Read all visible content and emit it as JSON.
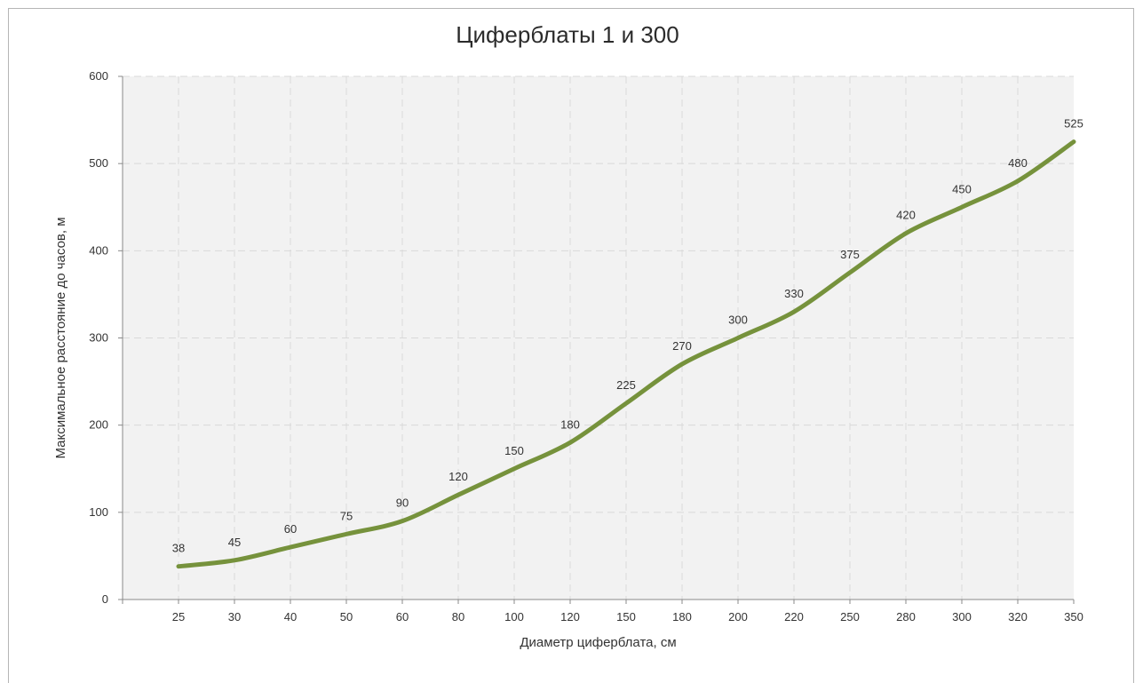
{
  "chart_data": {
    "type": "line",
    "title": "Циферблаты 1 и 300",
    "xlabel": "Диаметр циферблата, см",
    "ylabel": "Максимальное расстояние до часов, м",
    "categories": [
      "25",
      "30",
      "40",
      "50",
      "60",
      "80",
      "100",
      "120",
      "150",
      "180",
      "200",
      "220",
      "250",
      "280",
      "300",
      "320",
      "350"
    ],
    "series": [
      {
        "values": [
          38,
          45,
          60,
          75,
          90,
          120,
          150,
          180,
          225,
          270,
          300,
          330,
          375,
          420,
          450,
          480,
          525
        ]
      }
    ],
    "ylim": [
      0,
      600
    ],
    "yticks": [
      "0",
      "100",
      "200",
      "300",
      "400",
      "500",
      "600"
    ],
    "data_labels": [
      "38",
      "45",
      "60",
      "75",
      "90",
      "120",
      "150",
      "180",
      "225",
      "270",
      "300",
      "330",
      "375",
      "420",
      "450",
      "480",
      "525"
    ],
    "grid": true,
    "line_color": "#76923c",
    "plot_background": "#f2f2f2",
    "grid_color": "#d9d9d9"
  }
}
